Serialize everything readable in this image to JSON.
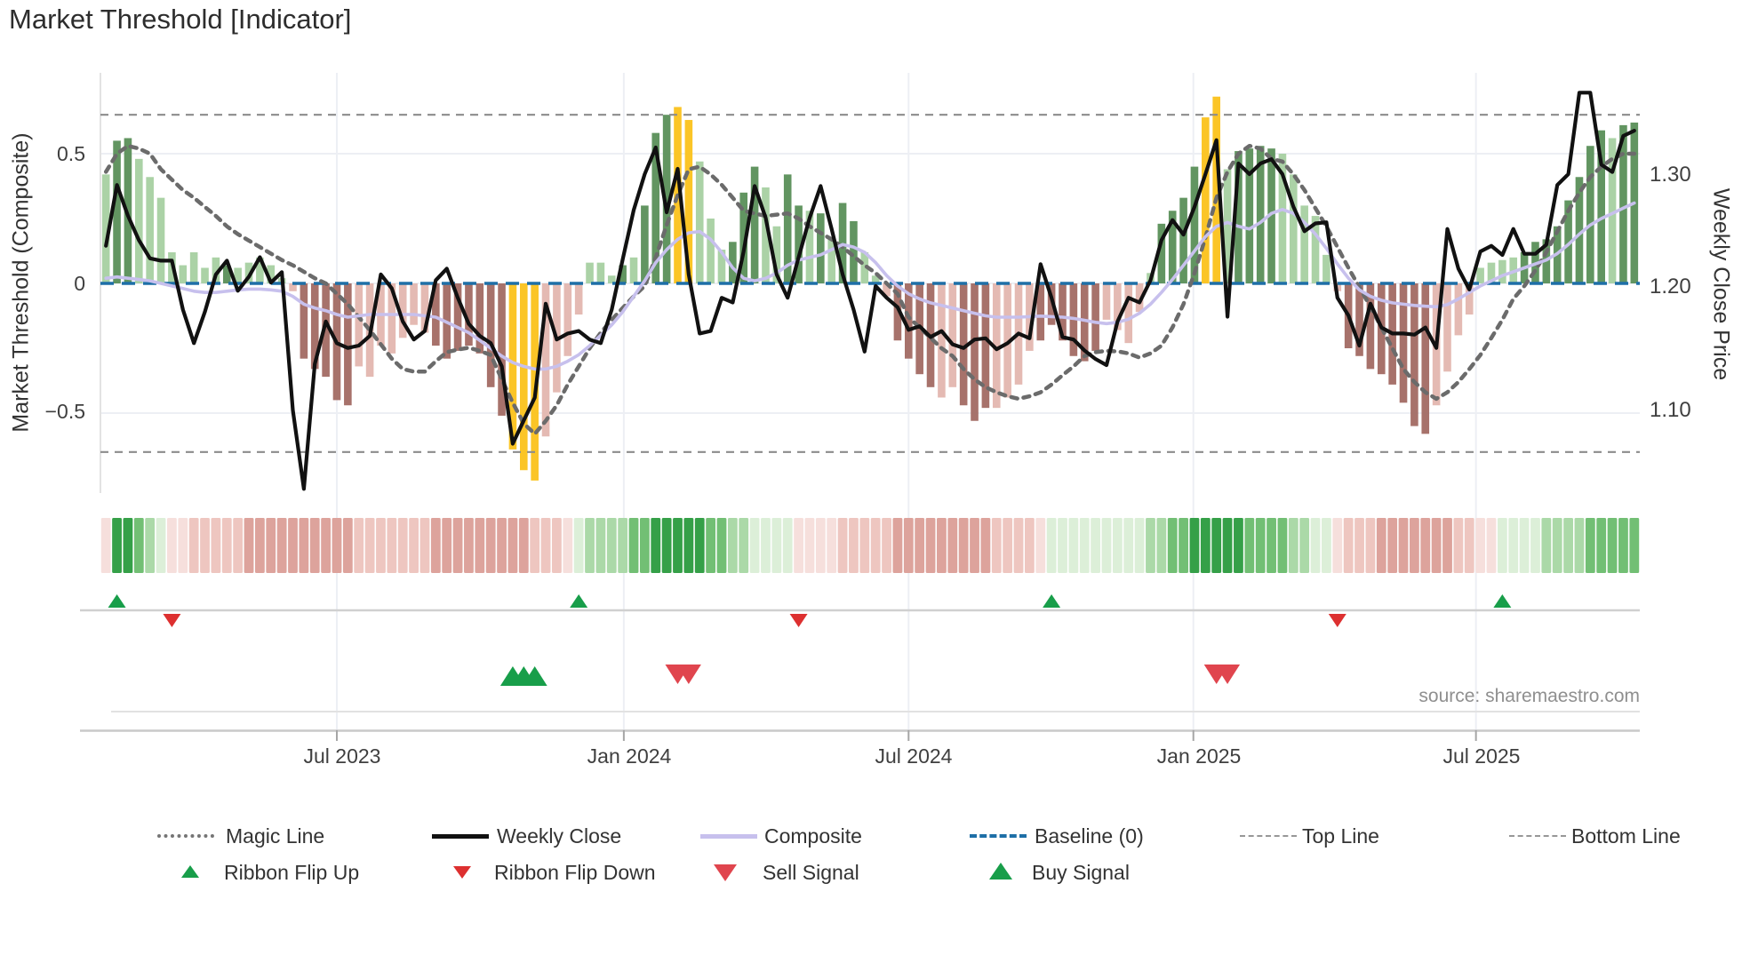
{
  "chart_data": {
    "type": "mixed_bar_line",
    "title": "Market Threshold [Indicator]",
    "source": "source: sharemaestro.com",
    "n": 140,
    "x_axis": {
      "tick_labels": [
        "Jul 2023",
        "Jan 2024",
        "Jul 2024",
        "Jan 2025",
        "Jul 2025"
      ],
      "tick_weeks": [
        21.5,
        47.6,
        73.5,
        99.4,
        125.1
      ]
    },
    "left_axis": {
      "label": "Market Threshold (Composite)",
      "ticks": [
        "0.5",
        "0",
        "−0.5"
      ],
      "tick_values": [
        0.5,
        0,
        -0.5
      ],
      "range": [
        -0.81,
        0.81
      ],
      "grid": true
    },
    "right_axis": {
      "label": "Weekly Close Price",
      "ticks": [
        "1.30",
        "1.20",
        "1.10"
      ],
      "tick_values": [
        1.3,
        1.2,
        1.1
      ],
      "scale": "log",
      "range": [
        1.035,
        1.398
      ]
    },
    "top_line": 0.65,
    "bottom_line": -0.65,
    "baseline": 0,
    "series": {
      "threshold_bars": {
        "values": [
          0.42,
          0.55,
          0.56,
          0.48,
          0.41,
          0.33,
          0.12,
          0.07,
          0.12,
          0.06,
          0.1,
          0.07,
          0.06,
          0.08,
          0.1,
          0.07,
          0.02,
          -0.03,
          -0.29,
          -0.33,
          -0.36,
          -0.45,
          -0.47,
          -0.32,
          -0.36,
          -0.24,
          -0.27,
          -0.21,
          -0.16,
          -0.19,
          -0.24,
          -0.29,
          -0.26,
          -0.24,
          -0.27,
          -0.4,
          -0.51,
          -0.64,
          -0.72,
          -0.76,
          -0.59,
          -0.42,
          -0.28,
          -0.12,
          0.08,
          0.08,
          0.03,
          0.07,
          0.1,
          0.3,
          0.58,
          0.65,
          0.68,
          0.63,
          0.47,
          0.25,
          0.13,
          0.16,
          0.35,
          0.45,
          0.37,
          0.22,
          0.42,
          0.3,
          0.28,
          0.27,
          0.18,
          0.31,
          0.24,
          0.12,
          0.03,
          -0.05,
          -0.22,
          -0.29,
          -0.35,
          -0.4,
          -0.44,
          -0.4,
          -0.47,
          -0.53,
          -0.48,
          -0.48,
          -0.44,
          -0.39,
          -0.26,
          -0.22,
          -0.16,
          -0.22,
          -0.28,
          -0.3,
          -0.26,
          -0.14,
          -0.18,
          -0.23,
          -0.11,
          0.04,
          0.23,
          0.28,
          0.33,
          0.45,
          0.64,
          0.72,
          0.44,
          0.51,
          0.52,
          0.53,
          0.52,
          0.5,
          0.42,
          0.3,
          0.26,
          0.11,
          -0.03,
          -0.25,
          -0.28,
          -0.33,
          -0.35,
          -0.39,
          -0.46,
          -0.55,
          -0.58,
          -0.47,
          -0.34,
          -0.2,
          -0.12,
          0.06,
          0.08,
          0.09,
          0.1,
          0.12,
          0.16,
          0.17,
          0.22,
          0.32,
          0.41,
          0.53,
          0.59,
          0.56,
          0.61,
          0.62
        ],
        "colors": [
          "lg",
          "dg",
          "dg",
          "lg",
          "lg",
          "lg",
          "lg",
          "lg",
          "lg",
          "lg",
          "lg",
          "dg",
          "lg",
          "lg",
          "lg",
          "lg",
          "lg",
          "lr",
          "dr",
          "dr",
          "dr",
          "dr",
          "dr",
          "lr",
          "lr",
          "lr",
          "lr",
          "lr",
          "lr",
          "lr",
          "dr",
          "dr",
          "dr",
          "dr",
          "dr",
          "dr",
          "dr",
          "y",
          "y",
          "y",
          "lr",
          "lr",
          "lr",
          "lr",
          "lg",
          "lg",
          "lg",
          "dg",
          "lg",
          "dg",
          "dg",
          "dg",
          "y",
          "y",
          "lg",
          "lg",
          "lg",
          "dg",
          "dg",
          "dg",
          "lg",
          "lg",
          "dg",
          "dg",
          "lg",
          "dg",
          "lg",
          "dg",
          "dg",
          "lg",
          "lg",
          "lr",
          "dr",
          "dr",
          "dr",
          "dr",
          "lr",
          "lr",
          "dr",
          "dr",
          "dr",
          "lr",
          "lr",
          "lr",
          "lr",
          "dr",
          "dr",
          "dr",
          "dr",
          "dr",
          "dr",
          "lr",
          "lr",
          "lr",
          "lr",
          "lg",
          "dg",
          "dg",
          "dg",
          "dg",
          "y",
          "y",
          "lg",
          "dg",
          "dg",
          "dg",
          "dg",
          "lg",
          "lg",
          "lg",
          "lg",
          "lg",
          "lr",
          "dr",
          "dr",
          "dr",
          "dr",
          "dr",
          "dr",
          "dr",
          "dr",
          "lr",
          "lr",
          "lr",
          "lr",
          "lg",
          "lg",
          "lg",
          "lg",
          "dg",
          "dg",
          "dg",
          "dg",
          "dg",
          "dg",
          "dg",
          "dg",
          "lg",
          "dg",
          "dg"
        ]
      },
      "weekly_close": [
        1.235,
        1.29,
        1.262,
        1.24,
        1.224,
        1.222,
        1.222,
        1.18,
        1.152,
        1.178,
        1.21,
        1.222,
        1.196,
        1.208,
        1.225,
        1.203,
        1.212,
        1.098,
        1.038,
        1.135,
        1.17,
        1.152,
        1.148,
        1.15,
        1.158,
        1.21,
        1.198,
        1.17,
        1.155,
        1.162,
        1.205,
        1.215,
        1.19,
        1.168,
        1.158,
        1.152,
        1.133,
        1.072,
        1.09,
        1.108,
        1.185,
        1.155,
        1.16,
        1.162,
        1.155,
        1.152,
        1.18,
        1.223,
        1.267,
        1.3,
        1.325,
        1.265,
        1.305,
        1.21,
        1.16,
        1.162,
        1.19,
        1.186,
        1.23,
        1.289,
        1.26,
        1.21,
        1.19,
        1.225,
        1.26,
        1.289,
        1.25,
        1.21,
        1.18,
        1.145,
        1.2,
        1.19,
        1.182,
        1.163,
        1.166,
        1.157,
        1.162,
        1.151,
        1.148,
        1.155,
        1.156,
        1.147,
        1.152,
        1.16,
        1.156,
        1.219,
        1.19,
        1.157,
        1.155,
        1.146,
        1.139,
        1.134,
        1.17,
        1.19,
        1.186,
        1.205,
        1.24,
        1.258,
        1.245,
        1.27,
        1.3,
        1.332,
        1.174,
        1.31,
        1.3,
        1.31,
        1.314,
        1.3,
        1.27,
        1.248,
        1.255,
        1.256,
        1.19,
        1.175,
        1.15,
        1.185,
        1.165,
        1.16,
        1.16,
        1.159,
        1.165,
        1.148,
        1.25,
        1.215,
        1.197,
        1.23,
        1.235,
        1.227,
        1.25,
        1.228,
        1.228,
        1.236,
        1.29,
        1.3,
        1.378,
        1.378,
        1.309,
        1.302,
        1.336,
        1.341
      ],
      "composite": [
        0.02,
        0.025,
        0.02,
        0.015,
        0.01,
        0,
        -0.01,
        -0.02,
        -0.03,
        -0.035,
        -0.035,
        -0.03,
        -0.025,
        -0.022,
        -0.022,
        -0.025,
        -0.03,
        -0.05,
        -0.08,
        -0.095,
        -0.105,
        -0.12,
        -0.13,
        -0.125,
        -0.12,
        -0.12,
        -0.12,
        -0.12,
        -0.12,
        -0.125,
        -0.13,
        -0.15,
        -0.17,
        -0.19,
        -0.22,
        -0.25,
        -0.28,
        -0.305,
        -0.32,
        -0.33,
        -0.33,
        -0.32,
        -0.3,
        -0.275,
        -0.24,
        -0.2,
        -0.16,
        -0.11,
        -0.05,
        0.01,
        0.08,
        0.13,
        0.17,
        0.195,
        0.2,
        0.17,
        0.12,
        0.06,
        0.02,
        0.01,
        0.02,
        0.04,
        0.07,
        0.09,
        0.1,
        0.11,
        0.13,
        0.15,
        0.14,
        0.12,
        0.08,
        0.03,
        -0.01,
        -0.04,
        -0.06,
        -0.075,
        -0.085,
        -0.095,
        -0.105,
        -0.115,
        -0.125,
        -0.13,
        -0.13,
        -0.13,
        -0.128,
        -0.126,
        -0.128,
        -0.13,
        -0.135,
        -0.142,
        -0.15,
        -0.155,
        -0.15,
        -0.138,
        -0.115,
        -0.08,
        -0.035,
        0.015,
        0.07,
        0.125,
        0.18,
        0.22,
        0.235,
        0.22,
        0.21,
        0.235,
        0.27,
        0.285,
        0.27,
        0.235,
        0.19,
        0.135,
        0.075,
        0.02,
        -0.025,
        -0.05,
        -0.065,
        -0.075,
        -0.08,
        -0.085,
        -0.088,
        -0.09,
        -0.082,
        -0.06,
        -0.035,
        -0.01,
        0.01,
        0.03,
        0.045,
        0.06,
        0.075,
        0.09,
        0.115,
        0.15,
        0.19,
        0.225,
        0.25,
        0.27,
        0.29,
        0.31
      ],
      "magic_line": [
        0.43,
        0.5,
        0.53,
        0.52,
        0.5,
        0.44,
        0.4,
        0.36,
        0.33,
        0.295,
        0.26,
        0.22,
        0.19,
        0.165,
        0.14,
        0.115,
        0.09,
        0.07,
        0.045,
        0.02,
        0,
        -0.04,
        -0.08,
        -0.13,
        -0.18,
        -0.235,
        -0.29,
        -0.33,
        -0.34,
        -0.34,
        -0.3,
        -0.265,
        -0.255,
        -0.248,
        -0.26,
        -0.276,
        -0.37,
        -0.46,
        -0.54,
        -0.58,
        -0.53,
        -0.47,
        -0.39,
        -0.32,
        -0.25,
        -0.19,
        -0.14,
        -0.095,
        -0.05,
        -0.01,
        0.1,
        0.225,
        0.34,
        0.44,
        0.45,
        0.42,
        0.38,
        0.33,
        0.28,
        0.27,
        0.26,
        0.265,
        0.27,
        0.25,
        0.22,
        0.195,
        0.17,
        0.14,
        0.105,
        0.07,
        0.04,
        0,
        -0.04,
        -0.13,
        -0.17,
        -0.21,
        -0.25,
        -0.28,
        -0.33,
        -0.37,
        -0.4,
        -0.42,
        -0.435,
        -0.445,
        -0.435,
        -0.42,
        -0.39,
        -0.354,
        -0.32,
        -0.28,
        -0.265,
        -0.26,
        -0.262,
        -0.27,
        -0.286,
        -0.27,
        -0.24,
        -0.17,
        -0.08,
        0.04,
        0.177,
        0.33,
        0.43,
        0.5,
        0.53,
        0.52,
        0.48,
        0.47,
        0.42,
        0.36,
        0.29,
        0.22,
        0.14,
        0.06,
        -0.015,
        -0.09,
        -0.17,
        -0.25,
        -0.33,
        -0.38,
        -0.42,
        -0.445,
        -0.42,
        -0.38,
        -0.33,
        -0.276,
        -0.21,
        -0.14,
        -0.06,
        -0.01,
        0.05,
        0.12,
        0.2,
        0.28,
        0.35,
        0.41,
        0.45,
        0.48,
        0.5,
        0.5
      ]
    },
    "ribbon": [
      -1,
      4,
      4,
      3,
      2,
      1,
      -1,
      -1,
      -2,
      -2,
      -2,
      -2,
      -2,
      -3,
      -3,
      -3,
      -3,
      -3,
      -3,
      -3,
      -3,
      -3,
      -3,
      -2,
      -2,
      -2,
      -2,
      -2,
      -2,
      -2,
      -3,
      -3,
      -3,
      -3,
      -3,
      -3,
      -3,
      -3,
      -3,
      -2,
      -2,
      -2,
      -1,
      1,
      2,
      2,
      2,
      2,
      3,
      3,
      4,
      4,
      4,
      4,
      4,
      3,
      3,
      2,
      2,
      1,
      1,
      1,
      1,
      -1,
      -1,
      -1,
      -1,
      -2,
      -2,
      -2,
      -2,
      -2,
      -3,
      -3,
      -3,
      -3,
      -3,
      -3,
      -3,
      -3,
      -3,
      -2,
      -2,
      -2,
      -2,
      -1,
      1,
      1,
      1,
      1,
      1,
      1,
      1,
      1,
      1,
      2,
      2,
      3,
      3,
      4,
      4,
      4,
      4,
      4,
      3,
      3,
      3,
      3,
      2,
      2,
      1,
      1,
      -1,
      -2,
      -2,
      -2,
      -3,
      -3,
      -3,
      -3,
      -3,
      -3,
      -3,
      -2,
      -2,
      -1,
      -1,
      1,
      1,
      1,
      1,
      2,
      2,
      2,
      2,
      3,
      3,
      3,
      3,
      3
    ],
    "signals": {
      "ribbon_flip_up_weeks": [
        1,
        43,
        86,
        127
      ],
      "ribbon_flip_down_weeks": [
        6,
        63,
        112
      ],
      "buy_weeks": [
        37,
        38,
        39
      ],
      "sell_weeks": [
        52,
        53,
        101,
        102
      ]
    },
    "colors": {
      "bar_dark_green": "#5a8f58",
      "bar_light_green": "#a7d0a1",
      "bar_dark_red": "#a26a63",
      "bar_light_red": "#e3b6af",
      "bar_extreme_yellow": "#fbc21b",
      "weekly_close": "#111111",
      "composite": "#c7c0ed",
      "magic_line": "#6b6b6b",
      "baseline": "#1e6fa7",
      "guide_line": "#8c8c8c",
      "signal_green": "#189e4a",
      "signal_red": "#dd3030",
      "sell_red": "#e0454e",
      "grid": "#edeff4",
      "ribbon_green": [
        "#dcefd8",
        "#abd9a8",
        "#72bf74",
        "#35a048"
      ],
      "ribbon_red": [
        "#f6dfdc",
        "#eec6c0",
        "#dda39c"
      ]
    },
    "legend": {
      "magic": "Magic Line",
      "weekly": "Weekly Close",
      "composite": "Composite",
      "baseline": "Baseline (0)",
      "top": "Top Line",
      "bottom": "Bottom Line",
      "flip_up": "Ribbon Flip Up",
      "flip_down": "Ribbon Flip Down",
      "sell": "Sell Signal",
      "buy": "Buy Signal"
    }
  }
}
